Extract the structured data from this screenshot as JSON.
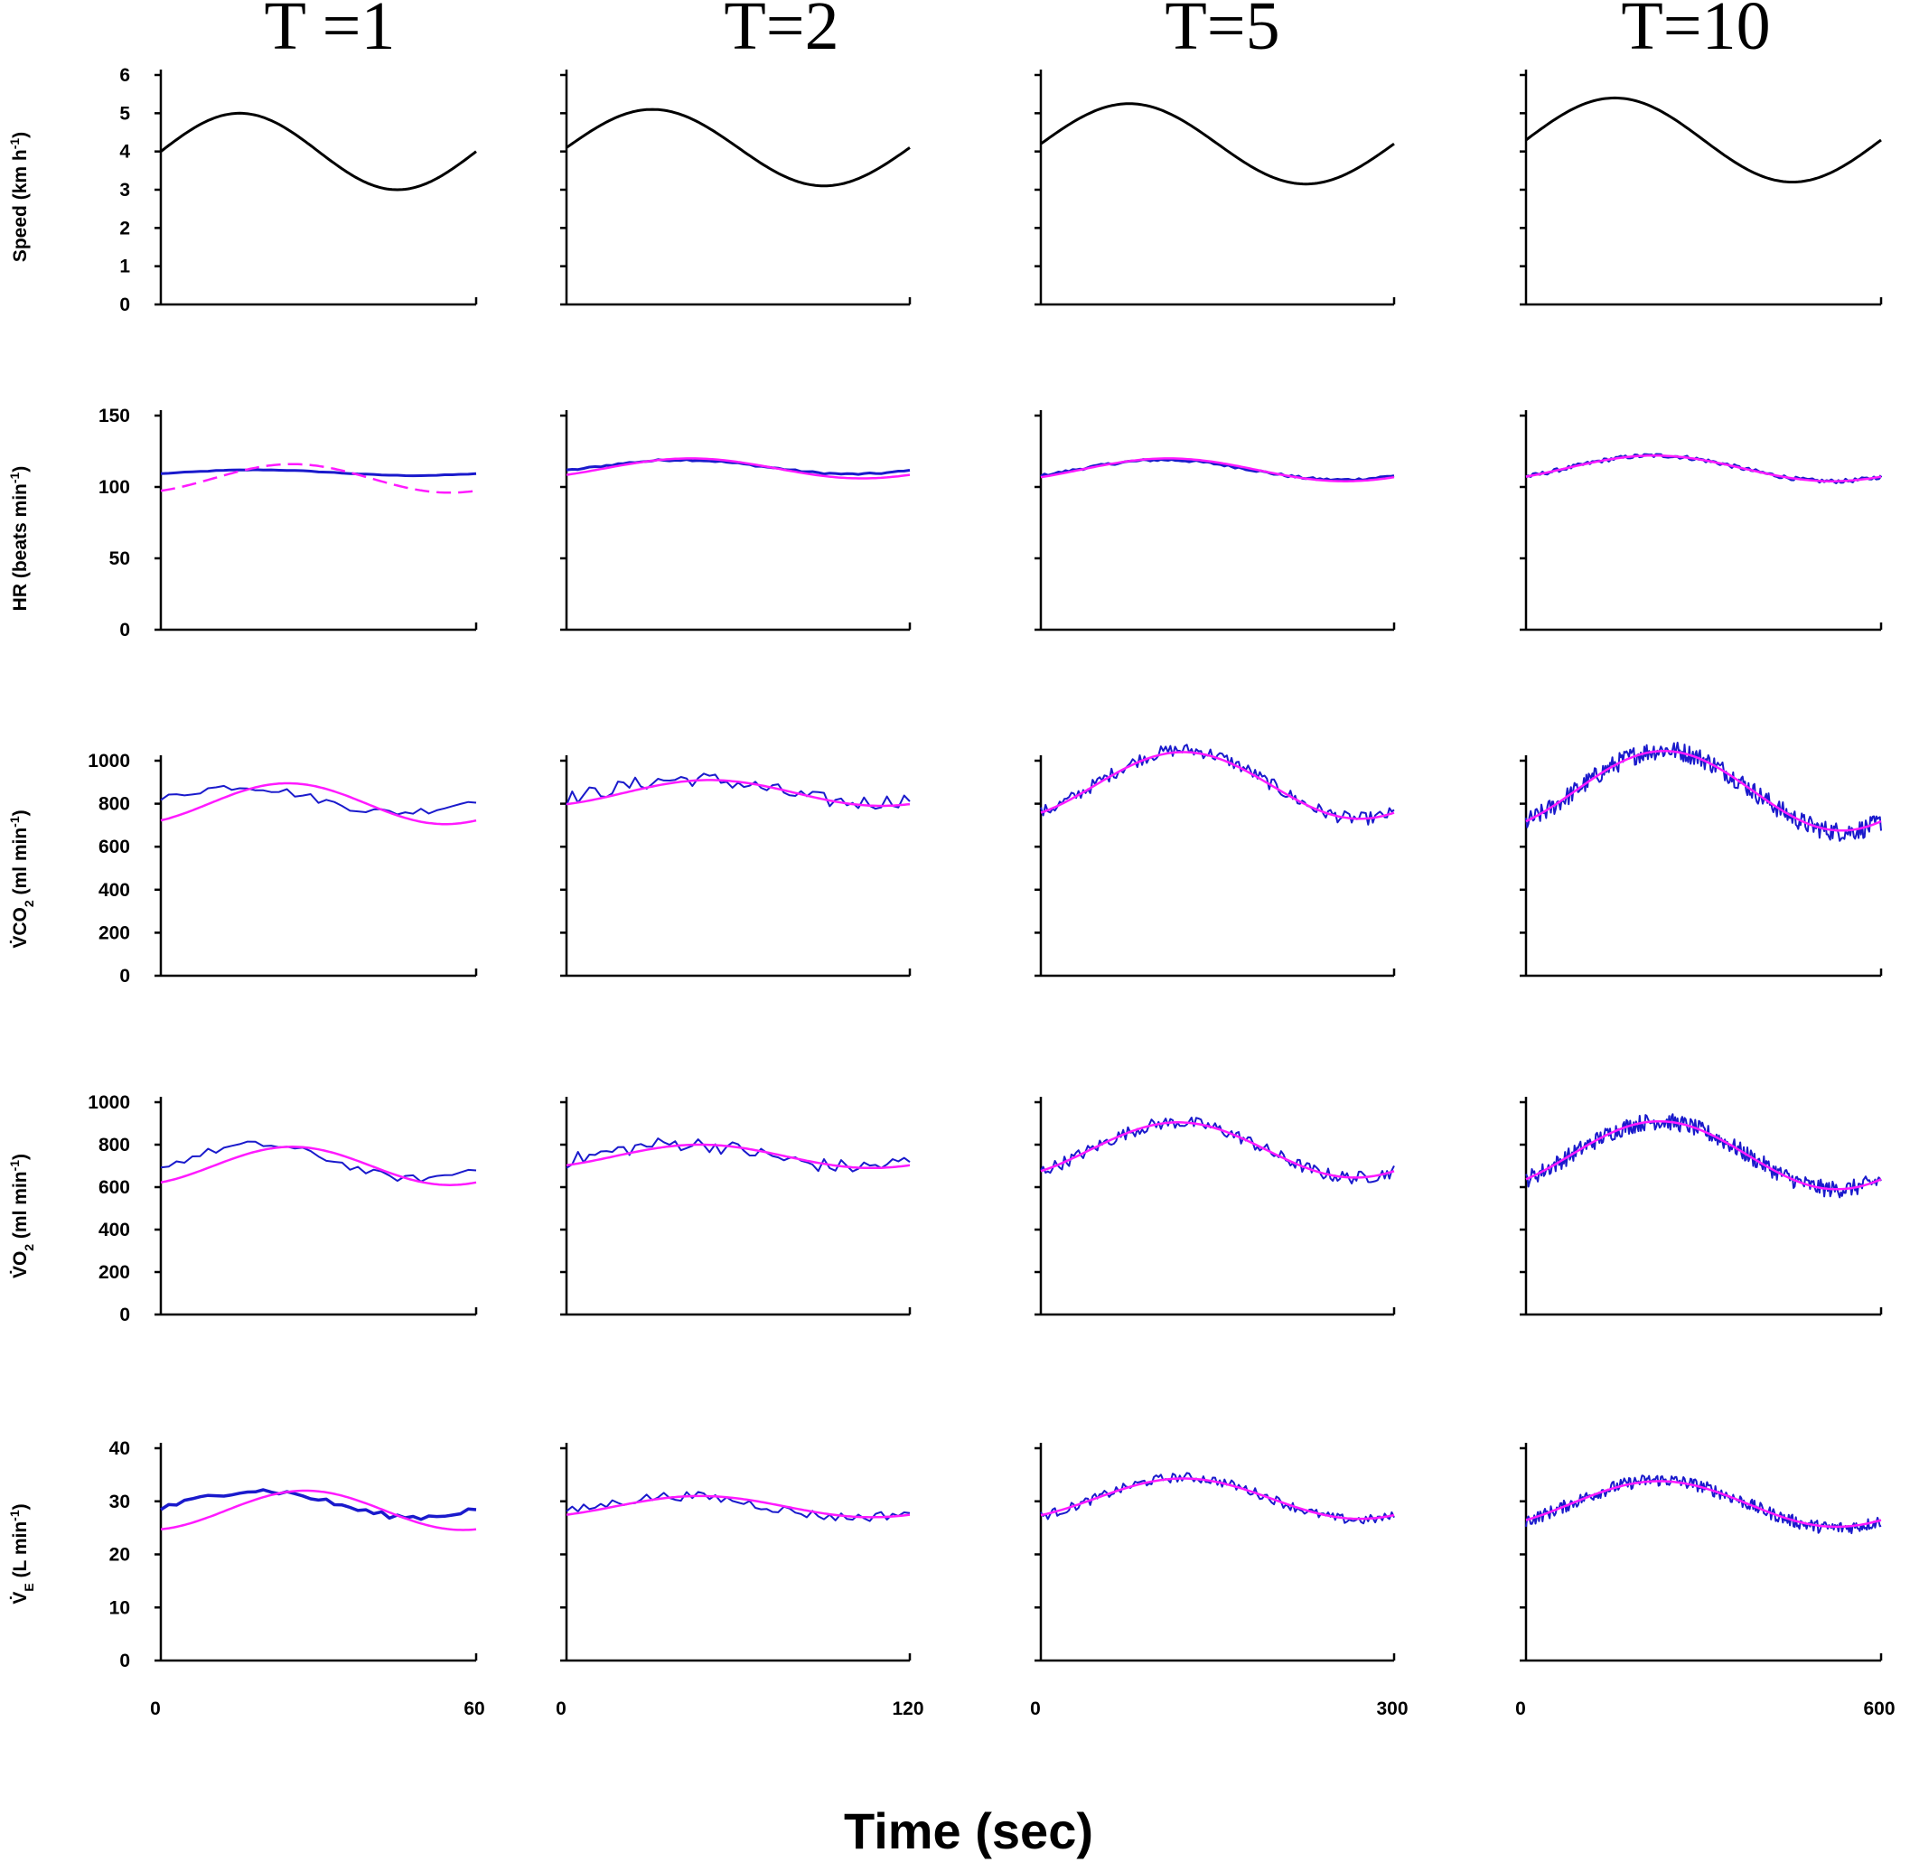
{
  "figure": {
    "xlabel": "Time (sec)",
    "colors": {
      "axis": "#000000",
      "speed": "#000000",
      "measured": "#1a1acc",
      "fitted": "#ff1aff"
    }
  },
  "columns": [
    {
      "title": "T =1",
      "period_s": 60,
      "x_ticks": [
        "0",
        "60"
      ]
    },
    {
      "title": "T=2",
      "period_s": 120,
      "x_ticks": [
        "0",
        "120"
      ]
    },
    {
      "title": "T=5",
      "period_s": 300,
      "x_ticks": [
        "0",
        "300"
      ]
    },
    {
      "title": "T=10",
      "period_s": 600,
      "x_ticks": [
        "0",
        "600"
      ]
    }
  ],
  "rows": [
    {
      "id": "speed",
      "ylabel": "Speed (km h-1)",
      "yticks": [
        "0",
        "1",
        "2",
        "3",
        "4",
        "5",
        "6"
      ]
    },
    {
      "id": "hr",
      "ylabel": "HR (beats min-1)",
      "yticks": [
        "0",
        "50",
        "100",
        "150"
      ]
    },
    {
      "id": "vco2",
      "ylabel": "VCO2 (ml min-1)",
      "yticks": [
        "0",
        "200",
        "400",
        "600",
        "800",
        "1000"
      ]
    },
    {
      "id": "vo2",
      "ylabel": "VO2 (ml min-1)",
      "yticks": [
        "0",
        "200",
        "400",
        "600",
        "800",
        "1000"
      ]
    },
    {
      "id": "ve",
      "ylabel": "VE (L min-1)",
      "yticks": [
        "0",
        "10",
        "20",
        "30",
        "40"
      ]
    }
  ],
  "chart_data": [
    {
      "type": "line",
      "title": "T =1",
      "ylabel": "Speed (km h-1)",
      "xlim": [
        0,
        60
      ],
      "ylim": [
        0,
        6
      ],
      "series": [
        {
          "name": "speed",
          "style": "solid",
          "mean": 4,
          "amp": 1,
          "phase_deg": 0
        }
      ]
    },
    {
      "type": "line",
      "title": "T=2",
      "ylabel": "Speed (km h-1)",
      "xlim": [
        0,
        120
      ],
      "ylim": [
        0,
        6
      ],
      "series": [
        {
          "name": "speed",
          "style": "solid",
          "mean": 4.1,
          "amp": 1,
          "phase_deg": 0
        }
      ]
    },
    {
      "type": "line",
      "title": "T=5",
      "ylabel": "Speed (km h-1)",
      "xlim": [
        0,
        300
      ],
      "ylim": [
        0,
        6
      ],
      "series": [
        {
          "name": "speed",
          "style": "solid",
          "mean": 4.2,
          "amp": 1.05,
          "phase_deg": 0
        }
      ]
    },
    {
      "type": "line",
      "title": "T=10",
      "ylabel": "Speed (km h-1)",
      "xlim": [
        0,
        600
      ],
      "ylim": [
        0,
        6
      ],
      "series": [
        {
          "name": "speed",
          "style": "solid",
          "mean": 4.3,
          "amp": 1.1,
          "phase_deg": 0
        }
      ]
    },
    {
      "type": "line",
      "title": "T =1",
      "ylabel": "HR (beats min-1)",
      "xlim": [
        0,
        60
      ],
      "ylim": [
        0,
        150
      ],
      "series": [
        {
          "name": "measured",
          "mean": 110,
          "amp": 2,
          "phase_deg": 20,
          "noise": 0.2,
          "points": 40,
          "width": 3
        },
        {
          "name": "fitted",
          "style": "dashed",
          "mean": 106,
          "amp": 10,
          "phase_deg": 60
        }
      ]
    },
    {
      "type": "line",
      "title": "T=2",
      "ylabel": "HR (beats min-1)",
      "xlim": [
        0,
        120
      ],
      "ylim": [
        0,
        150
      ],
      "series": [
        {
          "name": "measured",
          "mean": 114,
          "amp": 5,
          "phase_deg": 30,
          "noise": 0.6,
          "points": 60,
          "width": 3
        },
        {
          "name": "fitted",
          "mean": 113,
          "amp": 7,
          "phase_deg": 40
        }
      ]
    },
    {
      "type": "line",
      "title": "T=5",
      "ylabel": "HR (beats min-1)",
      "xlim": [
        0,
        300
      ],
      "ylim": [
        0,
        150
      ],
      "series": [
        {
          "name": "measured",
          "mean": 112,
          "amp": 7,
          "phase_deg": 35,
          "noise": 0.8,
          "points": 100,
          "width": 3
        },
        {
          "name": "fitted",
          "mean": 112,
          "amp": 8,
          "phase_deg": 40
        }
      ]
    },
    {
      "type": "line",
      "title": "T=10",
      "ylabel": "HR (beats min-1)",
      "xlim": [
        0,
        600
      ],
      "ylim": [
        0,
        150
      ],
      "series": [
        {
          "name": "measured",
          "mean": 113,
          "amp": 9,
          "phase_deg": 40,
          "noise": 1.2,
          "points": 150,
          "width": 3
        },
        {
          "name": "fitted",
          "mean": 113,
          "amp": 9,
          "phase_deg": 40
        }
      ]
    },
    {
      "type": "line",
      "title": "T =1",
      "ylabel": "VCO2 (ml min-1)",
      "xlim": [
        0,
        60
      ],
      "ylim": [
        0,
        1000
      ],
      "series": [
        {
          "name": "measured",
          "mean": 820,
          "amp": 60,
          "phase_deg": 0,
          "noise": 18,
          "points": 40,
          "width": 2
        },
        {
          "name": "fitted",
          "mean": 800,
          "amp": 95,
          "phase_deg": 55
        }
      ]
    },
    {
      "type": "line",
      "title": "T=2",
      "ylabel": "VCO2 (ml min-1)",
      "xlim": [
        0,
        120
      ],
      "ylim": [
        0,
        1000
      ],
      "series": [
        {
          "name": "measured",
          "mean": 860,
          "amp": 55,
          "phase_deg": 40,
          "noise": 35,
          "points": 60,
          "width": 2
        },
        {
          "name": "fitted",
          "mean": 850,
          "amp": 60,
          "phase_deg": 60
        }
      ]
    },
    {
      "type": "line",
      "title": "T=5",
      "ylabel": "VCO2 (ml min-1)",
      "xlim": [
        0,
        300
      ],
      "ylim": [
        0,
        1000
      ],
      "series": [
        {
          "name": "measured",
          "mean": 890,
          "amp": 160,
          "phase_deg": 55,
          "noise": 30,
          "points": 150,
          "width": 2
        },
        {
          "name": "fitted",
          "mean": 885,
          "amp": 155,
          "phase_deg": 55
        }
      ]
    },
    {
      "type": "line",
      "title": "T=10",
      "ylabel": "VCO2 (ml min-1)",
      "xlim": [
        0,
        600
      ],
      "ylim": [
        0,
        1000
      ],
      "series": [
        {
          "name": "measured",
          "mean": 860,
          "amp": 190,
          "phase_deg": 50,
          "noise": 45,
          "points": 300,
          "width": 2
        },
        {
          "name": "fitted",
          "mean": 860,
          "amp": 185,
          "phase_deg": 50
        }
      ]
    },
    {
      "type": "line",
      "title": "T =1",
      "ylabel": "VO2 (ml min-1)",
      "xlim": [
        0,
        60
      ],
      "ylim": [
        0,
        1000
      ],
      "series": [
        {
          "name": "measured",
          "mean": 720,
          "amp": 80,
          "phase_deg": 20,
          "noise": 18,
          "points": 40,
          "width": 2
        },
        {
          "name": "fitted",
          "mean": 700,
          "amp": 90,
          "phase_deg": 60
        }
      ]
    },
    {
      "type": "line",
      "title": "T=2",
      "ylabel": "VO2 (ml min-1)",
      "xlim": [
        0,
        120
      ],
      "ylim": [
        0,
        1000
      ],
      "series": [
        {
          "name": "measured",
          "mean": 750,
          "amp": 55,
          "phase_deg": 30,
          "noise": 35,
          "points": 60,
          "width": 2
        },
        {
          "name": "fitted",
          "mean": 745,
          "amp": 55,
          "phase_deg": 50
        }
      ]
    },
    {
      "type": "line",
      "title": "T=5",
      "ylabel": "VO2 (ml min-1)",
      "xlim": [
        0,
        300
      ],
      "ylim": [
        0,
        1000
      ],
      "series": [
        {
          "name": "measured",
          "mean": 775,
          "amp": 130,
          "phase_deg": 50,
          "noise": 30,
          "points": 150,
          "width": 2
        },
        {
          "name": "fitted",
          "mean": 775,
          "amp": 130,
          "phase_deg": 50
        }
      ]
    },
    {
      "type": "line",
      "title": "T=10",
      "ylabel": "VO2 (ml min-1)",
      "xlim": [
        0,
        600
      ],
      "ylim": [
        0,
        1000
      ],
      "series": [
        {
          "name": "measured",
          "mean": 750,
          "amp": 160,
          "phase_deg": 45,
          "noise": 40,
          "points": 300,
          "width": 2
        },
        {
          "name": "fitted",
          "mean": 750,
          "amp": 160,
          "phase_deg": 45
        }
      ]
    },
    {
      "type": "line",
      "title": "T =1",
      "ylabel": "VE (L min-1)",
      "xlim": [
        0,
        60
      ],
      "ylim": [
        0,
        40
      ],
      "series": [
        {
          "name": "measured",
          "mean": 29.5,
          "amp": 2.5,
          "phase_deg": 20,
          "noise": 0.5,
          "points": 40,
          "width": 3.5
        },
        {
          "name": "fitted",
          "mean": 28.3,
          "amp": 3.7,
          "phase_deg": 75
        }
      ]
    },
    {
      "type": "line",
      "title": "T=2",
      "ylabel": "VE (L min-1)",
      "xlim": [
        0,
        120
      ],
      "ylim": [
        0,
        40
      ],
      "series": [
        {
          "name": "measured",
          "mean": 29,
          "amp": 2,
          "phase_deg": 30,
          "noise": 0.9,
          "points": 60,
          "width": 2
        },
        {
          "name": "fitted",
          "mean": 29,
          "amp": 2,
          "phase_deg": 50
        }
      ]
    },
    {
      "type": "line",
      "title": "T=5",
      "ylabel": "VE (L min-1)",
      "xlim": [
        0,
        300
      ],
      "ylim": [
        0,
        40
      ],
      "series": [
        {
          "name": "measured",
          "mean": 30.5,
          "amp": 4,
          "phase_deg": 55,
          "noise": 0.9,
          "points": 150,
          "width": 2
        },
        {
          "name": "fitted",
          "mean": 30.5,
          "amp": 3.8,
          "phase_deg": 55
        }
      ]
    },
    {
      "type": "line",
      "title": "T=10",
      "ylabel": "VE (L min-1)",
      "xlim": [
        0,
        600
      ],
      "ylim": [
        0,
        40
      ],
      "series": [
        {
          "name": "measured",
          "mean": 29.5,
          "amp": 4.5,
          "phase_deg": 45,
          "noise": 1.2,
          "points": 300,
          "width": 2
        },
        {
          "name": "fitted",
          "mean": 29.5,
          "amp": 4.3,
          "phase_deg": 45
        }
      ]
    }
  ]
}
